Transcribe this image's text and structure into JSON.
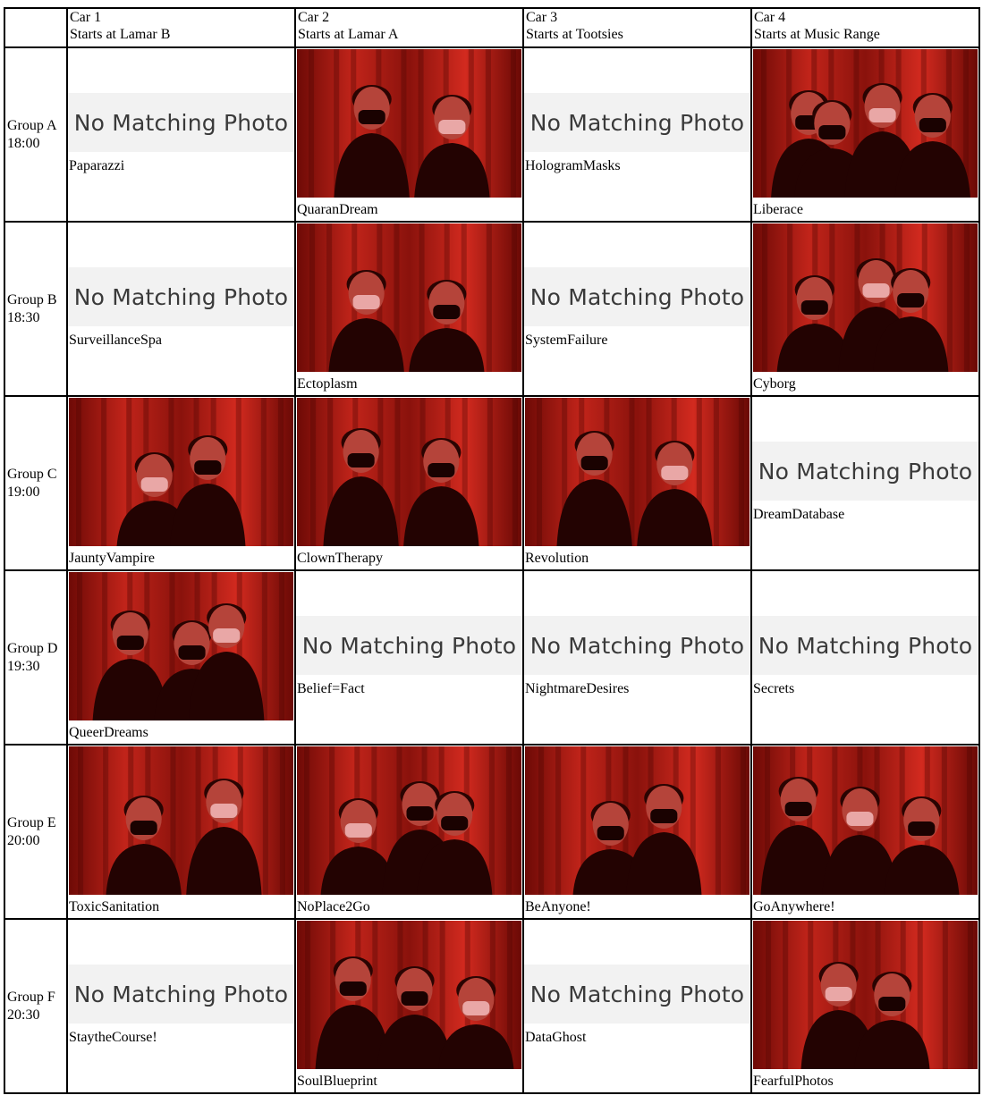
{
  "columns": [
    {
      "car": "Car 1",
      "start": "Starts at Lamar B"
    },
    {
      "car": "Car 2",
      "start": "Starts at Lamar A"
    },
    {
      "car": "Car 3",
      "start": "Starts at Tootsies"
    },
    {
      "car": "Car 4",
      "start": "Starts at Music Range"
    }
  ],
  "no_match_text": "No Matching Photo",
  "rows": [
    {
      "group": "Group A",
      "time": "18:00",
      "cells": [
        {
          "caption": "Paparazzi",
          "has_photo": false
        },
        {
          "caption": "QuaranDream",
          "has_photo": true,
          "people": 2
        },
        {
          "caption": "HologramMasks",
          "has_photo": false
        },
        {
          "caption": "Liberace",
          "has_photo": true,
          "people": 4
        }
      ]
    },
    {
      "group": "Group B",
      "time": "18:30",
      "cells": [
        {
          "caption": "SurveillanceSpa",
          "has_photo": false
        },
        {
          "caption": "Ectoplasm",
          "has_photo": true,
          "people": 2
        },
        {
          "caption": "SystemFailure",
          "has_photo": false
        },
        {
          "caption": "Cyborg",
          "has_photo": true,
          "people": 3
        }
      ]
    },
    {
      "group": "Group C",
      "time": "19:00",
      "cells": [
        {
          "caption": "JauntyVampire",
          "has_photo": true,
          "people": 2
        },
        {
          "caption": "ClownTherapy",
          "has_photo": true,
          "people": 2
        },
        {
          "caption": "Revolution",
          "has_photo": true,
          "people": 2
        },
        {
          "caption": "DreamDatabase",
          "has_photo": false
        }
      ]
    },
    {
      "group": "Group D",
      "time": "19:30",
      "cells": [
        {
          "caption": "QueerDreams",
          "has_photo": true,
          "people": 3
        },
        {
          "caption": "Belief=Fact",
          "has_photo": false
        },
        {
          "caption": "NightmareDesires",
          "has_photo": false
        },
        {
          "caption": "Secrets",
          "has_photo": false
        }
      ]
    },
    {
      "group": "Group E",
      "time": "20:00",
      "cells": [
        {
          "caption": "ToxicSanitation",
          "has_photo": true,
          "people": 2
        },
        {
          "caption": "NoPlace2Go",
          "has_photo": true,
          "people": 3
        },
        {
          "caption": "BeAnyone!",
          "has_photo": true,
          "people": 2
        },
        {
          "caption": "GoAnywhere!",
          "has_photo": true,
          "people": 3
        }
      ]
    },
    {
      "group": "Group F",
      "time": "20:30",
      "cells": [
        {
          "caption": "StaytheCourse!",
          "has_photo": false
        },
        {
          "caption": "SoulBlueprint",
          "has_photo": true,
          "people": 3
        },
        {
          "caption": "DataGhost",
          "has_photo": false
        },
        {
          "caption": "FearfulPhotos",
          "has_photo": true,
          "people": 2
        }
      ]
    }
  ]
}
